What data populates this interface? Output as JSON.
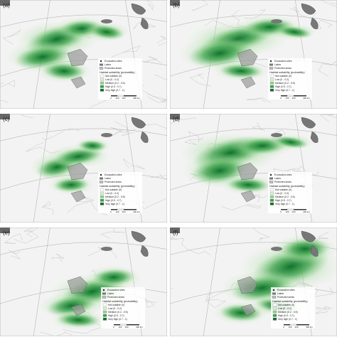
{
  "panels": [
    {
      "label": "(a)"
    },
    {
      "label": "(b)"
    },
    {
      "label": "(c)"
    },
    {
      "label": "(d)"
    },
    {
      "label": "(e)"
    },
    {
      "label": "(f)"
    }
  ],
  "legend": {
    "items": [
      "Excavation sites",
      "Lakes",
      "Protected areas"
    ],
    "title": "Habitat suitability (probability)",
    "classes": [
      "Not suitable (0)",
      "Low (0 - 0.2)",
      "Medium (0.2 - 0.5)",
      "High (0.5 - 0.7)",
      "Very high (0.7 - 1)"
    ]
  },
  "scale_bar": [
    "0",
    "100",
    "200",
    "400 km"
  ]
}
